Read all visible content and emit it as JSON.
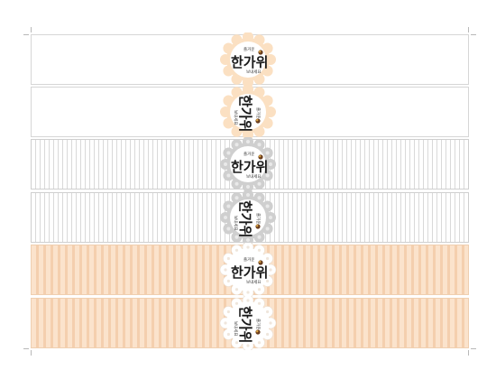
{
  "labels": [
    {
      "id": 1,
      "layout": "horizontal",
      "frame": "peach",
      "background": "plain",
      "title": "한가위",
      "top_text": "즐거운",
      "bottom_text": "보내세요"
    },
    {
      "id": 2,
      "layout": "vertical",
      "frame": "peach",
      "background": "plain",
      "title": "한가위",
      "top_text": "즐거운",
      "bottom_text": "보내세요"
    },
    {
      "id": 3,
      "layout": "horizontal",
      "frame": "grey",
      "background": "grey-stripe",
      "title": "한가위",
      "top_text": "즐거운",
      "bottom_text": "보내세요"
    },
    {
      "id": 4,
      "layout": "vertical",
      "frame": "grey",
      "background": "grey-stripe",
      "title": "한가위",
      "top_text": "즐거운",
      "bottom_text": "보내세요"
    },
    {
      "id": 5,
      "layout": "horizontal",
      "frame": "white",
      "background": "peach-stripe",
      "title": "한가위",
      "top_text": "즐거운",
      "bottom_text": "보내세요"
    },
    {
      "id": 6,
      "layout": "vertical",
      "frame": "white",
      "background": "peach-stripe",
      "title": "한가위",
      "top_text": "즐거운",
      "bottom_text": "보내세요"
    }
  ],
  "colors": {
    "peach_frame": "#fbe0c2",
    "grey_frame": "#cfcfcf",
    "white_frame": "#ffffff",
    "accent_brown": "#6b3e1e",
    "accent_gold": "#d9a441"
  }
}
